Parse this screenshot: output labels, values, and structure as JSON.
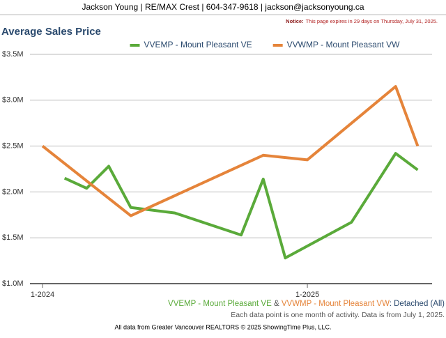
{
  "header": {
    "contact": "Jackson Young | RE/MAX Crest | 604-347-9618 | jackson@jacksonyoung.ca",
    "notice_label": "Notice:",
    "notice_text": "This page expires in 29 days on Thursday, July 31, 2025."
  },
  "chart_data": {
    "type": "line",
    "title": "Average Sales Price",
    "series": [
      {
        "name": "VVEMP - Mount Pleasant VE",
        "color": "#5aaa3a",
        "x": [
          1,
          2,
          3,
          4,
          6,
          9,
          10,
          11,
          14,
          16,
          17
        ],
        "values": [
          2.15,
          2.04,
          2.28,
          1.83,
          1.77,
          1.53,
          2.14,
          1.28,
          1.67,
          2.42,
          2.24
        ]
      },
      {
        "name": "VVWMP - Mount Pleasant VW",
        "color": "#e5843a",
        "x": [
          0,
          4,
          10,
          12,
          16,
          17
        ],
        "values": [
          2.5,
          1.74,
          2.4,
          2.35,
          3.15,
          2.5
        ]
      }
    ],
    "xlim": [
      -0.57,
      17.65
    ],
    "xticks": [
      {
        "value": 0,
        "label": "1-2024"
      },
      {
        "value": 12,
        "label": "1-2025"
      }
    ],
    "ylim": [
      1.0,
      3.5
    ],
    "yticks": [
      {
        "value": 1.0,
        "label": "$1.0M"
      },
      {
        "value": 1.5,
        "label": "$1.5M"
      },
      {
        "value": 2.0,
        "label": "$2.0M"
      },
      {
        "value": 2.5,
        "label": "$2.5M"
      },
      {
        "value": 3.0,
        "label": "$3.0M"
      },
      {
        "value": 3.5,
        "label": "$3.5M"
      }
    ],
    "grid": true,
    "legend": "top"
  },
  "footnote": {
    "joiner": " & ",
    "suffix": ": Detached (All)",
    "note": "Each data point is one month of activity. Data is from July 1, 2025."
  },
  "footer": "All data from Greater Vancouver REALTORS © 2025 ShowingTime Plus, LLC."
}
